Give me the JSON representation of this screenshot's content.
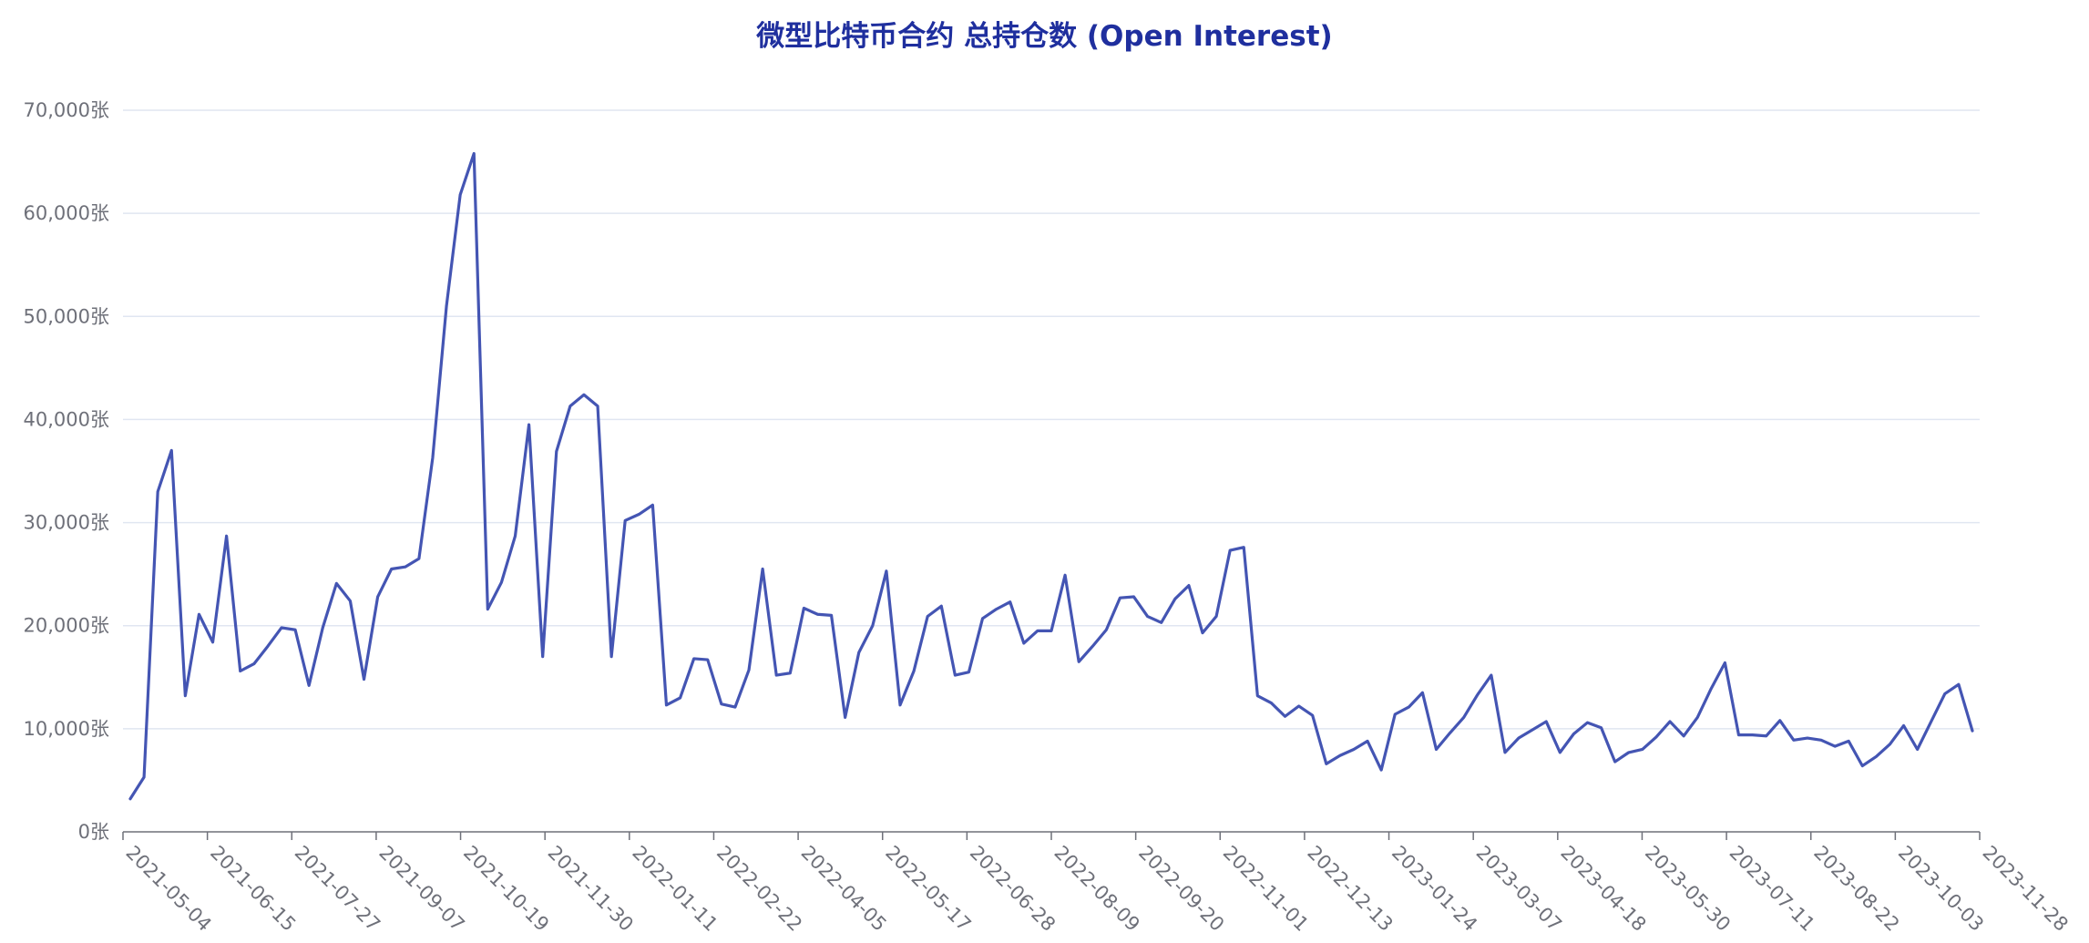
{
  "chart_data": {
    "type": "line",
    "title": "微型比特币合约 总持仓数 (Open Interest)",
    "xlabel": "",
    "ylabel": "",
    "y_unit": "张",
    "ylim": [
      0,
      70000
    ],
    "y_ticks": [
      "0张",
      "10,000张",
      "20,000张",
      "30,000张",
      "40,000张",
      "50,000张",
      "60,000张",
      "70,000张"
    ],
    "x_ticks": [
      "2021-05-04",
      "2021-06-15",
      "2021-07-27",
      "2021-09-07",
      "2021-10-19",
      "2021-11-30",
      "2022-01-11",
      "2022-02-22",
      "2022-04-05",
      "2022-05-17",
      "2022-06-28",
      "2022-08-09",
      "2022-09-20",
      "2022-11-01",
      "2022-12-13",
      "2023-01-24",
      "2023-03-07",
      "2023-04-18",
      "2023-05-30",
      "2023-07-11",
      "2023-08-22",
      "2023-10-03",
      "2023-11-28"
    ],
    "grid": true,
    "legend": "none",
    "line_color": "#4455b3",
    "series": [
      {
        "values": [
          3200,
          5300,
          33000,
          37000,
          13200,
          21100,
          18400,
          28700,
          15600,
          16300,
          18000,
          19800,
          19600,
          14200,
          19800,
          24100,
          22400,
          14800,
          22800,
          25500,
          25700,
          26500,
          36300,
          51000,
          61800,
          65800,
          21600,
          24200,
          28700,
          39500,
          17000,
          36900,
          41300,
          42400,
          41300,
          17000,
          30200,
          30800,
          31700,
          12300,
          13000,
          16800,
          16700,
          12400,
          12100,
          15700,
          25500,
          15200,
          15400,
          21700,
          21100,
          21000,
          11100,
          17400,
          20000,
          25300,
          12300,
          15600,
          20900,
          21900,
          15200,
          15500,
          20700,
          21600,
          22300,
          18300,
          19500,
          19500,
          24900,
          16500,
          18000,
          19600,
          22700,
          22800,
          20900,
          20300,
          22600,
          23900,
          19300,
          20900,
          27300,
          27600,
          13200,
          12500,
          11200,
          12200,
          11300,
          6600,
          7400,
          8000,
          8800,
          6000,
          11400,
          12100,
          13500,
          8000,
          9600,
          11100,
          13300,
          15200,
          7700,
          9100,
          9900,
          10700,
          7700,
          9500,
          10600,
          10100,
          6800,
          7700,
          8000,
          9200,
          10700,
          9300,
          11100,
          13900,
          16400,
          9400,
          9400,
          9300,
          10800,
          8900,
          9100,
          8900,
          8300,
          8800,
          6400,
          7300,
          8500,
          10300,
          8000,
          10700,
          13400,
          14300,
          9800
        ]
      }
    ]
  }
}
